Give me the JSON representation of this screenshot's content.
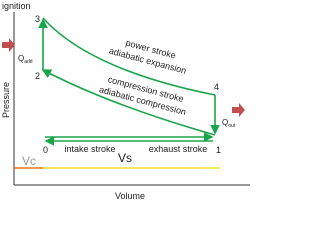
{
  "axes": {
    "y_label": "Pressure",
    "x_label": "Volume",
    "top_label": "ignition"
  },
  "points": [
    "3",
    "2",
    "4",
    "1",
    "0"
  ],
  "heat": {
    "in": {
      "q": "Q",
      "sub": "add"
    },
    "out": {
      "q": "Q",
      "sub": "out"
    }
  },
  "strokes": {
    "power": "power stroke",
    "expansion": "adiabatic expansion",
    "compression": "compression stroke",
    "adiabatic_compression": "adiabatic compression",
    "intake": "intake stroke",
    "exhaust": "exhaust stroke"
  },
  "volumes": {
    "clearance": "Vc",
    "swept": "Vs"
  }
}
